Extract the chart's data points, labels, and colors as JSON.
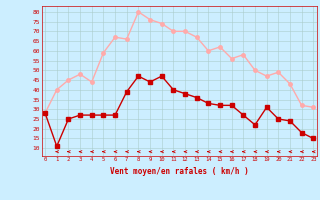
{
  "hours": [
    0,
    1,
    2,
    3,
    4,
    5,
    6,
    7,
    8,
    9,
    10,
    11,
    12,
    13,
    14,
    15,
    16,
    17,
    18,
    19,
    20,
    21,
    22,
    23
  ],
  "vent_moyen": [
    28,
    11,
    25,
    27,
    27,
    27,
    27,
    39,
    47,
    44,
    47,
    40,
    38,
    36,
    33,
    32,
    32,
    27,
    22,
    31,
    25,
    24,
    18,
    15
  ],
  "rafales": [
    28,
    40,
    45,
    48,
    44,
    59,
    67,
    66,
    80,
    76,
    74,
    70,
    70,
    67,
    60,
    62,
    56,
    58,
    50,
    47,
    49,
    43,
    32,
    31
  ],
  "color_moyen": "#cc0000",
  "color_rafales": "#ffaaaa",
  "bg_color": "#cceeff",
  "grid_color": "#aacccc",
  "xlabel": "Vent moyen/en rafales ( km/h )",
  "yticks": [
    10,
    15,
    20,
    25,
    30,
    35,
    40,
    45,
    50,
    55,
    60,
    65,
    70,
    75,
    80
  ],
  "ylim": [
    6,
    83
  ],
  "xlim": [
    -0.3,
    23.3
  ],
  "marker_size": 2.5,
  "line_width": 1.0
}
